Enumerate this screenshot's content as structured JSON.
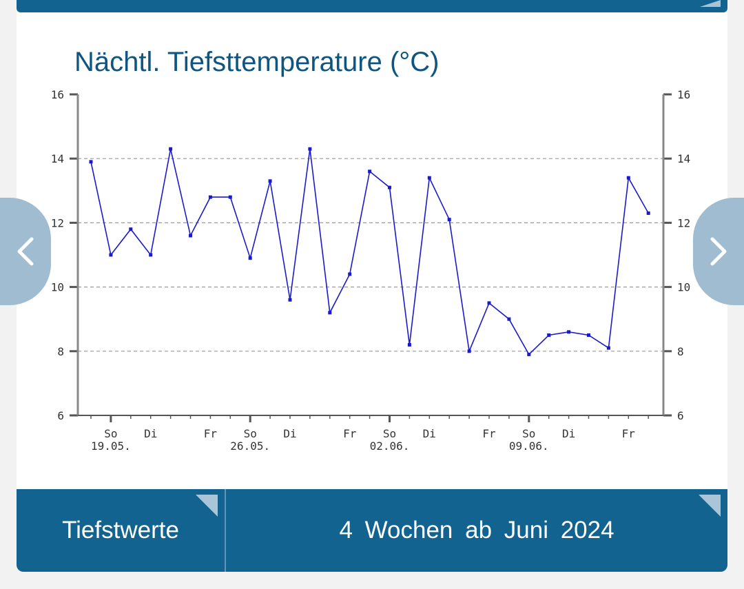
{
  "title": "Nächtl. Tiefsttemperature (°C)",
  "footer": {
    "type_label": "Tiefstwerte",
    "period_label": "4 Wochen ab Juni 2024"
  },
  "nav": {
    "prev_icon": "chevron-left-icon",
    "next_icon": "chevron-right-icon"
  },
  "colors": {
    "brand": "#12638f",
    "line": "#1a1acc",
    "grid": "#999999",
    "title": "#0f5580"
  },
  "chart_data": {
    "type": "line",
    "title": "Nächtl. Tiefsttemperature (°C)",
    "ylim": [
      6,
      16
    ],
    "yticks": [
      6,
      8,
      10,
      12,
      14,
      16
    ],
    "grid": true,
    "x": [
      "2024-05-18",
      "2024-05-19",
      "2024-05-20",
      "2024-05-21",
      "2024-05-22",
      "2024-05-23",
      "2024-05-24",
      "2024-05-25",
      "2024-05-26",
      "2024-05-27",
      "2024-05-28",
      "2024-05-29",
      "2024-05-30",
      "2024-05-31",
      "2024-06-01",
      "2024-06-02",
      "2024-06-03",
      "2024-06-04",
      "2024-06-05",
      "2024-06-06",
      "2024-06-07",
      "2024-06-08",
      "2024-06-09",
      "2024-06-10",
      "2024-06-11",
      "2024-06-12",
      "2024-06-13",
      "2024-06-14",
      "2024-06-15"
    ],
    "values": [
      13.9,
      11.0,
      11.8,
      11.0,
      14.3,
      11.6,
      12.8,
      12.8,
      10.9,
      13.3,
      9.6,
      14.3,
      9.2,
      10.4,
      13.6,
      13.1,
      8.2,
      13.4,
      12.1,
      8.0,
      9.5,
      9.0,
      7.9,
      8.5,
      8.6,
      8.5,
      8.1,
      13.4,
      12.3
    ],
    "day_labels": [
      {
        "index": 1,
        "label": "So"
      },
      {
        "index": 3,
        "label": "Di"
      },
      {
        "index": 6,
        "label": "Fr"
      },
      {
        "index": 8,
        "label": "So"
      },
      {
        "index": 10,
        "label": "Di"
      },
      {
        "index": 13,
        "label": "Fr"
      },
      {
        "index": 15,
        "label": "So"
      },
      {
        "index": 17,
        "label": "Di"
      },
      {
        "index": 20,
        "label": "Fr"
      },
      {
        "index": 22,
        "label": "So"
      },
      {
        "index": 24,
        "label": "Di"
      },
      {
        "index": 27,
        "label": "Fr"
      }
    ],
    "date_labels": [
      {
        "index": 1,
        "label": "19.05."
      },
      {
        "index": 8,
        "label": "26.05."
      },
      {
        "index": 15,
        "label": "02.06."
      },
      {
        "index": 22,
        "label": "09.06."
      }
    ]
  }
}
